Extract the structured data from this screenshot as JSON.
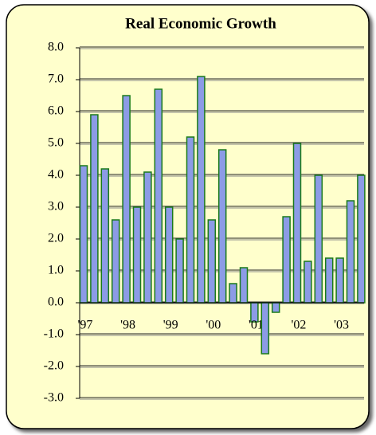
{
  "chart_data": {
    "type": "bar",
    "title": "Real Economic Growth",
    "categories": [
      "'97",
      null,
      null,
      null,
      "'98",
      null,
      null,
      null,
      "'99",
      null,
      null,
      null,
      "'00",
      null,
      null,
      null,
      "'01",
      null,
      null,
      null,
      "'02",
      null,
      null,
      null,
      "'03",
      null,
      null
    ],
    "values": [
      4.3,
      5.9,
      4.2,
      2.6,
      6.5,
      3.0,
      4.1,
      6.7,
      3.0,
      2.0,
      5.2,
      7.1,
      2.6,
      4.8,
      0.6,
      1.1,
      -0.6,
      -1.6,
      -0.3,
      2.7,
      5.0,
      1.3,
      4.0,
      1.4,
      1.4,
      3.2,
      4.0
    ],
    "color": "#8c9be6",
    "ylim": [
      -3,
      8
    ],
    "yticks": [
      {
        "value": -3,
        "label": "-3.0"
      },
      {
        "value": -2,
        "label": "-2.0"
      },
      {
        "value": -1,
        "label": "-1.0"
      },
      {
        "value": 0,
        "label": "0.0"
      },
      {
        "value": 1,
        "label": "1.0"
      },
      {
        "value": 2,
        "label": "2.0"
      },
      {
        "value": 3,
        "label": "3.0"
      },
      {
        "value": 4,
        "label": "4.0"
      },
      {
        "value": 5,
        "label": "5.0"
      },
      {
        "value": 6,
        "label": "6.0"
      },
      {
        "value": 7,
        "label": "7.0"
      },
      {
        "value": 8,
        "label": "8.0"
      }
    ],
    "grid": true
  }
}
